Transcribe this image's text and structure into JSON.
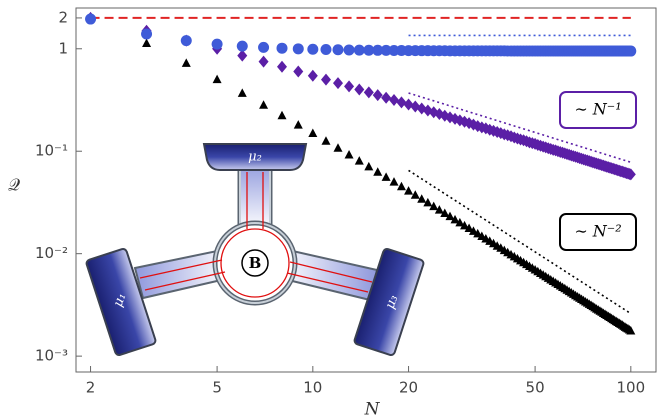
{
  "chart_data": {
    "type": "scatter",
    "x_label": "N",
    "y_label": "𝒬",
    "log_x": true,
    "log_y": true,
    "xlim": [
      1.8,
      120
    ],
    "ylim": [
      0.0007,
      2.5
    ],
    "xticks": [
      2,
      5,
      10,
      20,
      50,
      100
    ],
    "yticks": [
      {
        "value": 0.001,
        "label": "10⁻³"
      },
      {
        "value": 0.01,
        "label": "10⁻²"
      },
      {
        "value": 0.1,
        "label": "10⁻¹"
      },
      1,
      2
    ],
    "x": [
      2,
      3,
      4,
      5,
      6,
      7,
      8,
      9,
      10,
      11,
      12,
      13,
      14,
      15,
      16,
      17,
      18,
      19,
      20,
      21,
      22,
      23,
      24,
      25,
      26,
      27,
      28,
      29,
      30,
      31,
      32,
      33,
      34,
      35,
      36,
      37,
      38,
      39,
      40,
      41,
      42,
      43,
      44,
      45,
      46,
      47,
      48,
      49,
      50,
      51,
      52,
      53,
      54,
      55,
      56,
      57,
      58,
      59,
      60,
      61,
      62,
      63,
      64,
      65,
      66,
      67,
      68,
      69,
      70,
      71,
      72,
      73,
      74,
      75,
      76,
      77,
      78,
      79,
      80,
      81,
      82,
      83,
      84,
      85,
      86,
      87,
      88,
      89,
      90,
      91,
      92,
      93,
      94,
      95,
      96,
      97,
      98,
      99,
      100
    ],
    "series": [
      {
        "color": "#000000",
        "marker": "triangle",
        "values": [
          2,
          1.125,
          0.72,
          0.5,
          0.367,
          0.281,
          0.222,
          0.18,
          0.149,
          0.125,
          0.107,
          0.0918,
          0.08,
          0.0703,
          0.0623,
          0.0556,
          0.0499,
          0.045,
          0.0408,
          0.0372,
          0.034,
          0.0313,
          0.0288,
          0.0266,
          0.0247,
          0.023,
          0.0214,
          0.02,
          0.0187,
          0.0176,
          0.0165,
          0.0156,
          0.0147,
          0.0139,
          0.0132,
          0.0125,
          0.0118,
          0.0113,
          0.0107,
          0.0102,
          0.00973,
          0.0093,
          0.00889,
          0.00851,
          0.00815,
          0.00781,
          0.0075,
          0.0072,
          0.00692,
          0.00666,
          0.00641,
          0.00617,
          0.00595,
          0.00574,
          0.00554,
          0.00535,
          0.00517,
          0.005,
          0.00484,
          0.00468,
          0.00454,
          0.0044,
          0.00426,
          0.00413,
          0.00401,
          0.00389,
          0.00378,
          0.00367,
          0.00357,
          0.00347,
          0.00338,
          0.00329,
          0.0032,
          0.00312,
          0.00304,
          0.00296,
          0.00288,
          0.00281,
          0.00274,
          0.00268,
          0.00261,
          0.00255,
          0.00249,
          0.00243,
          0.00238,
          0.00232,
          0.00227,
          0.00222,
          0.00217,
          0.00213,
          0.00208,
          0.00204,
          0.002,
          0.00195,
          0.00191,
          0.00187,
          0.00184,
          0.0018,
          0.00176
        ]
      },
      {
        "color": "#5b1fa6",
        "marker": "diamond",
        "values": [
          2,
          1.5,
          1.2,
          1,
          0.857,
          0.75,
          0.667,
          0.6,
          0.545,
          0.5,
          0.462,
          0.429,
          0.4,
          0.375,
          0.353,
          0.333,
          0.316,
          0.3,
          0.286,
          0.273,
          0.261,
          0.25,
          0.24,
          0.231,
          0.222,
          0.214,
          0.207,
          0.2,
          0.194,
          0.188,
          0.182,
          0.176,
          0.171,
          0.167,
          0.162,
          0.158,
          0.154,
          0.15,
          0.146,
          0.143,
          0.14,
          0.136,
          0.133,
          0.13,
          0.128,
          0.125,
          0.122,
          0.12,
          0.118,
          0.115,
          0.113,
          0.111,
          0.109,
          0.107,
          0.105,
          0.103,
          0.102,
          0.1,
          0.0984,
          0.0968,
          0.0952,
          0.0938,
          0.0923,
          0.0909,
          0.0896,
          0.0882,
          0.087,
          0.0857,
          0.0845,
          0.0833,
          0.0822,
          0.0811,
          0.08,
          0.0789,
          0.0779,
          0.0769,
          0.0759,
          0.075,
          0.0741,
          0.0732,
          0.0723,
          0.0714,
          0.0706,
          0.0698,
          0.069,
          0.0682,
          0.0674,
          0.0667,
          0.0659,
          0.0652,
          0.0645,
          0.0638,
          0.0632,
          0.0625,
          0.0619,
          0.0612,
          0.0606,
          0.06,
          0.0594
        ]
      },
      {
        "color": "#3f5bd8",
        "marker": "circle",
        "values": [
          1.95,
          1.394,
          1.2,
          1.11,
          1.061,
          1.032,
          1.013,
          0.999,
          0.99,
          0.983,
          0.978,
          0.974,
          0.97,
          0.968,
          0.966,
          0.964,
          0.962,
          0.961,
          0.96,
          0.959,
          0.958,
          0.958,
          0.957,
          0.956,
          0.956,
          0.955,
          0.955,
          0.955,
          0.954,
          0.954,
          0.954,
          0.954,
          0.953,
          0.953,
          0.953,
          0.953,
          0.953,
          0.953,
          0.953,
          0.952,
          0.952,
          0.952,
          0.952,
          0.952,
          0.952,
          0.952,
          0.952,
          0.952,
          0.952,
          0.952,
          0.952,
          0.952,
          0.952,
          0.952,
          0.952,
          0.952,
          0.952,
          0.952,
          0.952,
          0.951,
          0.951,
          0.951,
          0.951,
          0.951,
          0.951,
          0.951,
          0.951,
          0.951,
          0.951,
          0.951,
          0.951,
          0.951,
          0.951,
          0.951,
          0.951,
          0.951,
          0.951,
          0.951,
          0.951,
          0.95,
          0.95,
          0.95,
          0.95,
          0.95,
          0.95,
          0.95,
          0.95,
          0.95,
          0.95,
          0.95,
          0.95,
          0.95,
          0.95,
          0.95,
          0.95,
          0.95,
          0.95,
          0.95,
          0.95
        ]
      }
    ],
    "reference_lines": [
      {
        "color": "#e02424",
        "style": "dashed",
        "x": [
          2,
          100
        ],
        "values": [
          2,
          2
        ]
      },
      {
        "color": "#3f5bd8",
        "style": "dotted",
        "x": [
          20,
          100
        ],
        "values": [
          1.35,
          1.35
        ]
      },
      {
        "color": "#5b1fa6",
        "style": "dotted",
        "x": [
          20,
          100
        ],
        "values": [
          0.37,
          0.078
        ]
      },
      {
        "color": "#000000",
        "style": "dotted",
        "x": [
          20,
          100
        ],
        "values": [
          0.065,
          0.0026
        ]
      }
    ],
    "annotations": [
      {
        "text": "∼ N⁻¹",
        "color": "#5b1fa6"
      },
      {
        "text": "∼ N⁻²",
        "color": "#000000"
      }
    ]
  },
  "inset": {
    "center": "B",
    "reservoirs": [
      "μ₁",
      "μ₂",
      "μ₃"
    ]
  }
}
